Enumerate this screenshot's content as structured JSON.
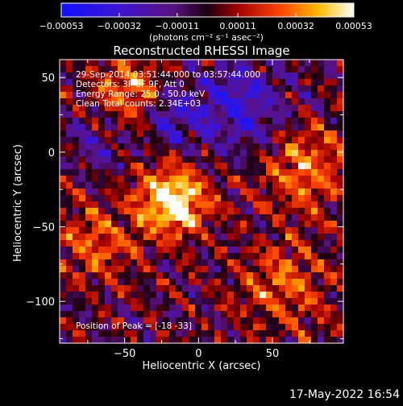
{
  "chart_data": {
    "type": "heatmap",
    "title": "Reconstructed RHESSI Image",
    "xlabel": "Heliocentric X (arcsec)",
    "ylabel": "Heliocentric Y (arcsec)",
    "xlim": [
      -94,
      98
    ],
    "ylim": [
      -128,
      62
    ],
    "xticks": [
      -50,
      0,
      50
    ],
    "yticks": [
      50,
      0,
      -50,
      -100
    ],
    "xtick_labels": [
      "−50",
      "0",
      "50"
    ],
    "ytick_labels": [
      "50",
      "0",
      "−50",
      "−100"
    ],
    "colorbar": {
      "min": -0.00053,
      "max": 0.00053,
      "ticks": [
        -0.00053,
        -0.00032,
        -0.00011,
        0.00011,
        0.00032,
        0.00053
      ],
      "tick_labels": [
        "−0.00053",
        "−0.00032",
        "−0.00011",
        "0.00011",
        "0.00032",
        "0.00053"
      ],
      "units": "(photons cm⁻² s⁻¹ asec⁻²)"
    },
    "annotations": [
      "29-Sep-2014 03:51:44.000 to 03:57:44.000",
      "Detectors: 3F 6F 9F, Att 0",
      "Energy Range: 25.0 - 50.0 keV",
      "Clean    Total counts: 2.34E+03",
      "Position of Peak = [-18 -33]"
    ],
    "peak": {
      "x": -18,
      "y": -33
    }
  },
  "footer": {
    "timestamp": "17-May-2022 16:54"
  }
}
